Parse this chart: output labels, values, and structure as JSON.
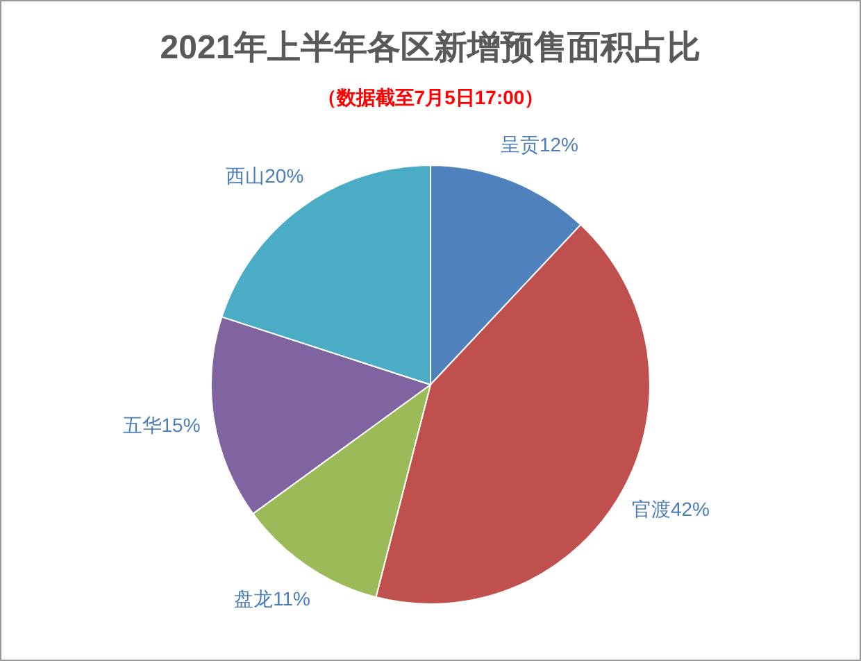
{
  "chart_data": {
    "type": "pie",
    "title": "2021年上半年各区新增预售面积占比",
    "subtitle": "（数据截至7月5日17:00）",
    "categories": [
      "呈贡",
      "官渡",
      "盘龙",
      "五华",
      "西山"
    ],
    "values": [
      12,
      42,
      11,
      15,
      20
    ],
    "value_labels": [
      "12%",
      "42%",
      "11%",
      "15%",
      "20%"
    ],
    "colors": [
      "#4f81bd",
      "#c0504d",
      "#9bbb59",
      "#8064a2",
      "#4bacc6"
    ]
  }
}
